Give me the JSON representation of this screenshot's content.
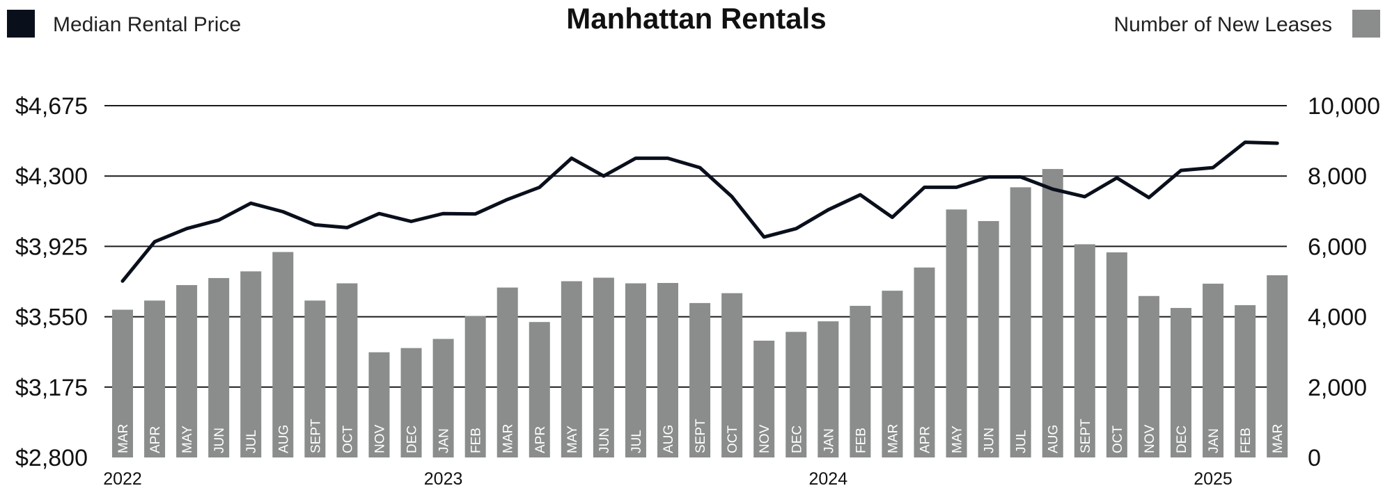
{
  "chart_data": {
    "type": "bar",
    "title": "Manhattan Rentals",
    "categories": [
      "MAR",
      "APR",
      "MAY",
      "JUN",
      "JUL",
      "AUG",
      "SEPT",
      "OCT",
      "NOV",
      "DEC",
      "JAN",
      "FEB",
      "MAR",
      "APR",
      "MAY",
      "JUN",
      "JUL",
      "AUG",
      "SEPT",
      "OCT",
      "NOV",
      "DEC",
      "JAN",
      "FEB",
      "MAR",
      "APR",
      "MAY",
      "JUN",
      "JUL",
      "AUG",
      "SEPT",
      "OCT",
      "NOV",
      "DEC",
      "JAN",
      "FEB",
      "MAR"
    ],
    "year_labels": [
      {
        "label": "2022",
        "category_index": 0
      },
      {
        "label": "2023",
        "category_index": 10
      },
      {
        "label": "2024",
        "category_index": 22
      },
      {
        "label": "2025",
        "category_index": 34
      }
    ],
    "series": [
      {
        "name": "Number of New Leases",
        "type": "bar",
        "axis": "right",
        "color": "#8a8d8c",
        "values": [
          4200,
          4460,
          4900,
          5100,
          5290,
          5840,
          4460,
          4950,
          2990,
          3110,
          3370,
          4020,
          4830,
          3850,
          5010,
          5110,
          4950,
          4960,
          4390,
          4670,
          3320,
          3570,
          3870,
          4310,
          4740,
          5400,
          7050,
          6720,
          7680,
          8200,
          6060,
          5830,
          4590,
          4250,
          4940,
          4330,
          5180
        ]
      },
      {
        "name": "Median Rental Price",
        "type": "line",
        "axis": "left",
        "color": "#0a0f1c",
        "values": [
          3740,
          3950,
          4020,
          4065,
          4155,
          4110,
          4040,
          4025,
          4100,
          4058,
          4100,
          4098,
          4175,
          4240,
          4395,
          4300,
          4395,
          4395,
          4345,
          4190,
          3975,
          4020,
          4120,
          4200,
          4080,
          4240,
          4240,
          4295,
          4295,
          4230,
          4190,
          4290,
          4185,
          4330,
          4345,
          4480,
          4475
        ]
      }
    ],
    "y_left": {
      "ticks": [
        "$4,675",
        "$4,300",
        "$3,925",
        "$3,550",
        "$3,175",
        "$2,800"
      ],
      "ylim": [
        2800,
        4675
      ]
    },
    "y_right": {
      "ticks": [
        "10,000",
        "8,000",
        "6,000",
        "4,000",
        "2,000",
        "0"
      ],
      "ylim": [
        0,
        10000
      ]
    },
    "grid": true,
    "legend": [
      {
        "name": "Median Rental Price",
        "color": "#0a0f1c",
        "placement": "top-left"
      },
      {
        "name": "Number of New Leases",
        "color": "#8a8d8c",
        "placement": "top-right"
      }
    ]
  }
}
